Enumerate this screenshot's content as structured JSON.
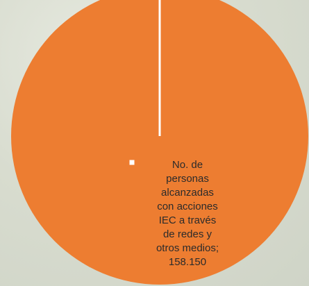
{
  "chart_data": {
    "type": "pie",
    "title": "",
    "slices": [
      {
        "label": "No. de personas alcanzadas con acciones IEC  a través de redes y otros medios",
        "value": 158150,
        "value_text": "158.150",
        "color": "#ed7d31"
      }
    ],
    "data_label_lines": [
      "No. de",
      "personas",
      "alcanzadas",
      "con acciones",
      "IEC  a través",
      "de redes y",
      "otros medios;",
      "158.150"
    ],
    "legend": "none"
  }
}
